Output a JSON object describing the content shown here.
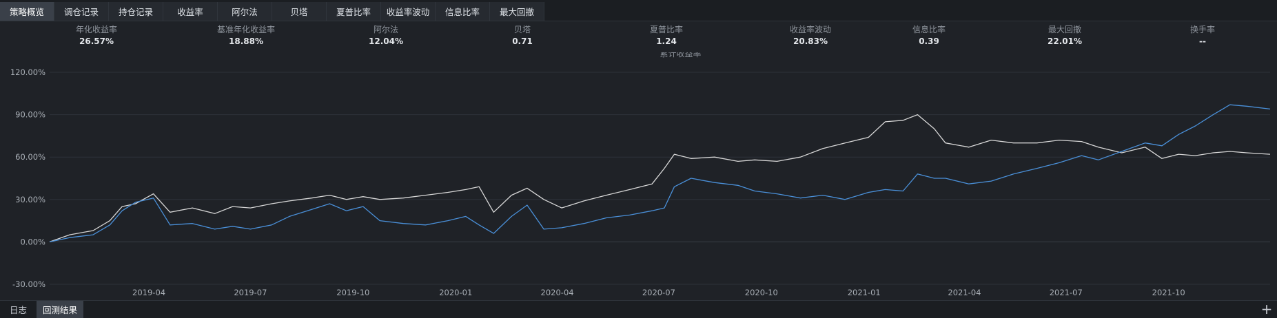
{
  "tabs": [
    {
      "label": "策略概览",
      "active": true
    },
    {
      "label": "调仓记录"
    },
    {
      "label": "持仓记录"
    },
    {
      "label": "收益率"
    },
    {
      "label": "阿尔法"
    },
    {
      "label": "贝塔"
    },
    {
      "label": "夏普比率"
    },
    {
      "label": "收益率波动"
    },
    {
      "label": "信息比率"
    },
    {
      "label": "最大回撤"
    }
  ],
  "metrics": [
    {
      "label": "年化收益率",
      "value": "26.57%"
    },
    {
      "label": "基准年化收益率",
      "value": "18.88%"
    },
    {
      "label": "阿尔法",
      "value": "12.04%"
    },
    {
      "label": "贝塔",
      "value": "0.71"
    },
    {
      "label": "夏普比率",
      "value": "1.24"
    },
    {
      "label": "收益率波动",
      "value": "20.83%"
    },
    {
      "label": "信息比率",
      "value": "0.39"
    },
    {
      "label": "最大回撤",
      "value": "22.01%"
    },
    {
      "label": "换手率",
      "value": "--"
    }
  ],
  "bottom_tabs": [
    {
      "label": "日志"
    },
    {
      "label": "回测结果",
      "active": true
    }
  ],
  "plus_icon": "+",
  "colors": {
    "strategy": "#4a90d9",
    "benchmark": "#d8d8d8",
    "grid": "#2e333a",
    "zero": "#3a3f46"
  },
  "chart_data": {
    "type": "line",
    "title": "累计收益率",
    "xlabel": "",
    "ylabel": "",
    "ylim": [
      -30,
      120
    ],
    "yticks": [
      "120.00%",
      "90.00%",
      "60.00%",
      "30.00%",
      "0.00%",
      "-30.00%"
    ],
    "ytick_values": [
      120,
      90,
      60,
      30,
      0,
      -30
    ],
    "xlim": [
      "2019-01-02",
      "2021-12-31"
    ],
    "xticks": [
      "2019-04",
      "2019-07",
      "2019-10",
      "2020-01",
      "2020-04",
      "2020-07",
      "2020-10",
      "2021-01",
      "2021-04",
      "2021-07",
      "2021-10"
    ],
    "grid": true,
    "legend": "none",
    "series": [
      {
        "key": "strategy",
        "x": [
          "2019-01-02",
          "2019-01-20",
          "2019-02-10",
          "2019-02-25",
          "2019-03-08",
          "2019-03-20",
          "2019-04-05",
          "2019-04-20",
          "2019-05-10",
          "2019-05-30",
          "2019-06-15",
          "2019-07-01",
          "2019-07-20",
          "2019-08-05",
          "2019-08-25",
          "2019-09-10",
          "2019-09-25",
          "2019-10-10",
          "2019-10-25",
          "2019-11-15",
          "2019-12-05",
          "2019-12-25",
          "2020-01-10",
          "2020-01-22",
          "2020-02-04",
          "2020-02-20",
          "2020-03-05",
          "2020-03-20",
          "2020-04-05",
          "2020-04-25",
          "2020-05-15",
          "2020-06-05",
          "2020-06-25",
          "2020-07-06",
          "2020-07-15",
          "2020-07-30",
          "2020-08-20",
          "2020-09-10",
          "2020-09-25",
          "2020-10-15",
          "2020-11-05",
          "2020-11-25",
          "2020-12-15",
          "2021-01-05",
          "2021-01-20",
          "2021-02-05",
          "2021-02-18",
          "2021-03-05",
          "2021-03-15",
          "2021-04-05",
          "2021-04-25",
          "2021-05-15",
          "2021-06-05",
          "2021-06-25",
          "2021-07-15",
          "2021-07-30",
          "2021-08-20",
          "2021-09-10",
          "2021-09-25",
          "2021-10-10",
          "2021-10-25",
          "2021-11-10",
          "2021-11-25",
          "2021-12-10",
          "2021-12-31"
        ],
        "y": [
          0,
          3,
          5,
          12,
          22,
          28,
          31,
          12,
          13,
          9,
          11,
          9,
          12,
          18,
          23,
          27,
          22,
          25,
          15,
          13,
          12,
          15,
          18,
          12,
          6,
          18,
          26,
          9,
          10,
          13,
          17,
          19,
          22,
          24,
          39,
          45,
          42,
          40,
          36,
          34,
          31,
          33,
          30,
          35,
          37,
          36,
          48,
          45,
          45,
          41,
          43,
          48,
          52,
          56,
          61,
          58,
          64,
          70,
          68,
          76,
          82,
          90,
          97,
          96,
          94
        ]
      },
      {
        "key": "benchmark",
        "x": [
          "2019-01-02",
          "2019-01-20",
          "2019-02-10",
          "2019-02-25",
          "2019-03-08",
          "2019-03-20",
          "2019-04-05",
          "2019-04-20",
          "2019-05-10",
          "2019-05-30",
          "2019-06-15",
          "2019-07-01",
          "2019-07-20",
          "2019-08-05",
          "2019-08-25",
          "2019-09-10",
          "2019-09-25",
          "2019-10-10",
          "2019-10-25",
          "2019-11-15",
          "2019-12-05",
          "2019-12-25",
          "2020-01-10",
          "2020-01-22",
          "2020-02-04",
          "2020-02-20",
          "2020-03-05",
          "2020-03-20",
          "2020-04-05",
          "2020-04-25",
          "2020-05-15",
          "2020-06-05",
          "2020-06-25",
          "2020-07-06",
          "2020-07-15",
          "2020-07-30",
          "2020-08-20",
          "2020-09-10",
          "2020-09-25",
          "2020-10-15",
          "2020-11-05",
          "2020-11-25",
          "2020-12-15",
          "2021-01-05",
          "2021-01-20",
          "2021-02-05",
          "2021-02-18",
          "2021-03-05",
          "2021-03-15",
          "2021-04-05",
          "2021-04-25",
          "2021-05-15",
          "2021-06-05",
          "2021-06-25",
          "2021-07-15",
          "2021-07-30",
          "2021-08-20",
          "2021-09-10",
          "2021-09-25",
          "2021-10-10",
          "2021-10-25",
          "2021-11-10",
          "2021-11-25",
          "2021-12-10",
          "2021-12-31"
        ],
        "y": [
          0,
          5,
          8,
          15,
          25,
          27,
          34,
          21,
          24,
          20,
          25,
          24,
          27,
          29,
          31,
          33,
          30,
          32,
          30,
          31,
          33,
          35,
          37,
          39,
          21,
          33,
          38,
          30,
          24,
          29,
          33,
          37,
          41,
          52,
          62,
          59,
          60,
          57,
          58,
          57,
          60,
          66,
          70,
          74,
          85,
          86,
          90,
          80,
          70,
          67,
          72,
          70,
          70,
          72,
          71,
          67,
          63,
          67,
          59,
          62,
          61,
          63,
          64,
          63,
          62
        ]
      }
    ]
  }
}
